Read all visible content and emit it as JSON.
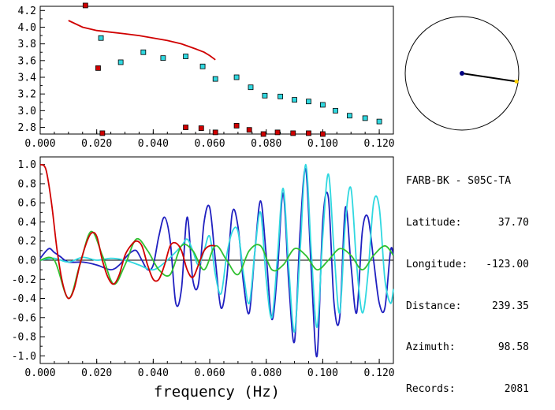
{
  "info": {
    "station_pair": "FARB-BK - S05C-TA",
    "rows": [
      {
        "label": "Latitude:",
        "value": "37.70"
      },
      {
        "label": "Longitude:",
        "value": "-123.00"
      },
      {
        "label": "Distance:",
        "value": "239.35"
      },
      {
        "label": "Azimuth:",
        "value": "98.58"
      },
      {
        "label": "Records:",
        "value": "2081"
      }
    ]
  },
  "chart_data": [
    {
      "type": "scatter",
      "title": "",
      "xlabel": "",
      "ylabel": "",
      "xlim": [
        0.0,
        0.125
      ],
      "ylim": [
        2.72,
        4.25
      ],
      "x_ticks": [
        0.0,
        0.02,
        0.04,
        0.06,
        0.08,
        0.1,
        0.12
      ],
      "x_tick_labels": [
        "0.000",
        "0.020",
        "0.040",
        "0.060",
        "0.080",
        "0.100",
        "0.120"
      ],
      "y_ticks": [
        2.8,
        3.0,
        3.2,
        3.4,
        3.6,
        3.8,
        4.0,
        4.2
      ],
      "y_tick_labels": [
        "2.8",
        "3.0",
        "3.2",
        "3.4",
        "3.6",
        "3.8",
        "4.0",
        "4.2"
      ],
      "series": [
        {
          "kind": "line",
          "color": "#d00000",
          "x": [
            0.01,
            0.015,
            0.02,
            0.025,
            0.03,
            0.035,
            0.04,
            0.045,
            0.05,
            0.055,
            0.058,
            0.06,
            0.062
          ],
          "y": [
            4.08,
            4.0,
            3.96,
            3.94,
            3.92,
            3.9,
            3.87,
            3.84,
            3.8,
            3.74,
            3.7,
            3.66,
            3.61
          ]
        },
        {
          "kind": "points",
          "color": "#30d8e0",
          "x": [
            0.0215,
            0.0285,
            0.0365,
            0.0435,
            0.0515,
            0.0575,
            0.062,
            0.0695,
            0.0745,
            0.0795,
            0.085,
            0.09,
            0.095,
            0.1,
            0.1045,
            0.1095,
            0.115,
            0.12
          ],
          "y": [
            3.87,
            3.58,
            3.7,
            3.63,
            3.65,
            3.53,
            3.38,
            3.4,
            3.28,
            3.18,
            3.17,
            3.13,
            3.11,
            3.07,
            3.0,
            2.94,
            2.91,
            2.87
          ]
        },
        {
          "kind": "points",
          "color": "#d00000",
          "x": [
            0.016,
            0.0205,
            0.022,
            0.0515,
            0.057,
            0.062,
            0.0695,
            0.074,
            0.079,
            0.084,
            0.0895,
            0.095,
            0.1
          ],
          "y": [
            4.26,
            3.51,
            2.73,
            2.8,
            2.79,
            2.74,
            2.82,
            2.77,
            2.72,
            2.74,
            2.73,
            2.73,
            2.72
          ]
        }
      ]
    },
    {
      "type": "line",
      "title": "",
      "xlabel": "frequency (Hz)",
      "ylabel": "",
      "xlim": [
        0.0,
        0.125
      ],
      "ylim": [
        -1.08,
        1.08
      ],
      "x_ticks": [
        0.0,
        0.02,
        0.04,
        0.06,
        0.08,
        0.1,
        0.12
      ],
      "x_tick_labels": [
        "0.000",
        "0.020",
        "0.040",
        "0.060",
        "0.080",
        "0.100",
        "0.120"
      ],
      "y_ticks": [
        -1.0,
        -0.8,
        -0.6,
        -0.4,
        -0.2,
        0.0,
        0.2,
        0.4,
        0.6,
        0.8,
        1.0
      ],
      "y_tick_labels": [
        "-1.0",
        "-0.8",
        "-0.6",
        "-0.4",
        "-0.2",
        "0.0",
        "0.2",
        "0.4",
        "0.6",
        "0.8",
        "1.0"
      ],
      "zero_line": true,
      "series": [
        {
          "color": "#2020c0",
          "x": [
            0.0,
            0.003,
            0.005,
            0.007,
            0.01,
            0.015,
            0.02,
            0.025,
            0.028,
            0.03,
            0.032,
            0.034,
            0.036,
            0.038,
            0.04,
            0.042,
            0.044,
            0.046,
            0.048,
            0.05,
            0.052,
            0.054,
            0.056,
            0.058,
            0.06,
            0.062,
            0.064,
            0.066,
            0.068,
            0.07,
            0.072,
            0.074,
            0.076,
            0.078,
            0.08,
            0.082,
            0.084,
            0.086,
            0.088,
            0.09,
            0.092,
            0.094,
            0.096,
            0.098,
            0.1,
            0.102,
            0.104,
            0.106,
            0.108,
            0.11,
            0.112,
            0.114,
            0.116,
            0.118,
            0.12,
            0.122,
            0.124,
            0.125
          ],
          "y": [
            0.02,
            0.12,
            0.08,
            0.04,
            -0.02,
            -0.02,
            -0.05,
            -0.1,
            -0.05,
            0.02,
            0.08,
            0.1,
            0.0,
            -0.1,
            -0.05,
            0.25,
            0.45,
            0.2,
            -0.45,
            -0.3,
            0.45,
            -0.2,
            -0.25,
            0.4,
            0.55,
            0.0,
            -0.5,
            -0.2,
            0.5,
            0.35,
            -0.25,
            -0.55,
            0.1,
            0.62,
            0.05,
            -0.62,
            -0.1,
            0.7,
            -0.25,
            -0.85,
            0.3,
            0.95,
            -0.15,
            -1.0,
            0.4,
            0.65,
            -0.45,
            -0.6,
            0.55,
            -0.05,
            -0.55,
            0.3,
            0.45,
            0.0,
            -0.45,
            -0.5,
            0.1,
            0.05
          ]
        },
        {
          "color": "#30d8e0",
          "x": [
            0.0,
            0.005,
            0.01,
            0.015,
            0.02,
            0.025,
            0.03,
            0.035,
            0.04,
            0.045,
            0.05,
            0.052,
            0.054,
            0.056,
            0.058,
            0.06,
            0.062,
            0.064,
            0.066,
            0.068,
            0.07,
            0.072,
            0.074,
            0.076,
            0.078,
            0.08,
            0.082,
            0.084,
            0.086,
            0.088,
            0.09,
            0.092,
            0.094,
            0.096,
            0.098,
            0.1,
            0.102,
            0.104,
            0.106,
            0.108,
            0.11,
            0.112,
            0.114,
            0.116,
            0.118,
            0.12,
            0.122,
            0.124,
            0.125
          ],
          "y": [
            0.0,
            0.02,
            -0.02,
            0.03,
            0.0,
            0.02,
            0.0,
            -0.05,
            -0.1,
            0.0,
            0.15,
            0.22,
            0.1,
            -0.05,
            0.1,
            0.25,
            -0.15,
            -0.35,
            0.05,
            0.3,
            0.3,
            -0.15,
            -0.45,
            0.1,
            0.5,
            -0.2,
            -0.6,
            0.05,
            0.75,
            -0.1,
            -0.75,
            0.1,
            1.0,
            0.05,
            -0.7,
            0.25,
            0.9,
            0.1,
            -0.55,
            0.4,
            0.75,
            -0.05,
            -0.55,
            -0.15,
            0.6,
            0.55,
            -0.2,
            -0.45,
            -0.3
          ]
        },
        {
          "color": "#30c030",
          "x": [
            0.0,
            0.005,
            0.01,
            0.014,
            0.018,
            0.022,
            0.026,
            0.03,
            0.034,
            0.038,
            0.042,
            0.046,
            0.05,
            0.054,
            0.058,
            0.062,
            0.066,
            0.07,
            0.074,
            0.078,
            0.082,
            0.086,
            0.09,
            0.094,
            0.098,
            0.102,
            0.106,
            0.11,
            0.114,
            0.118,
            0.122,
            0.125
          ],
          "y": [
            0.0,
            0.0,
            -0.4,
            -0.05,
            0.3,
            0.05,
            -0.25,
            -0.05,
            0.22,
            0.1,
            -0.1,
            -0.15,
            0.15,
            0.1,
            -0.1,
            0.15,
            0.0,
            -0.15,
            0.1,
            0.15,
            -0.1,
            -0.05,
            0.12,
            0.05,
            -0.1,
            0.0,
            0.12,
            0.05,
            -0.1,
            0.05,
            0.15,
            0.05
          ]
        },
        {
          "color": "#d00000",
          "x": [
            0.0,
            0.002,
            0.004,
            0.006,
            0.008,
            0.01,
            0.012,
            0.014,
            0.016,
            0.018,
            0.02,
            0.022,
            0.024,
            0.026,
            0.028,
            0.03,
            0.032,
            0.034,
            0.036,
            0.038,
            0.04,
            0.042,
            0.044,
            0.046,
            0.048,
            0.05,
            0.052,
            0.054,
            0.056,
            0.058,
            0.06,
            0.062
          ],
          "y": [
            1.0,
            0.95,
            0.6,
            0.1,
            -0.25,
            -0.4,
            -0.3,
            -0.05,
            0.15,
            0.28,
            0.25,
            0.0,
            -0.18,
            -0.25,
            -0.15,
            0.05,
            0.15,
            0.2,
            0.15,
            -0.05,
            -0.2,
            -0.2,
            -0.05,
            0.15,
            0.18,
            0.1,
            -0.1,
            -0.18,
            -0.05,
            0.1,
            0.15,
            0.15
          ]
        }
      ]
    }
  ],
  "map": {
    "azimuth_deg": 98.58,
    "distance_fraction": 0.97,
    "line_color": "#000000",
    "center_color": "#000080",
    "end_color": "#ffd000"
  }
}
